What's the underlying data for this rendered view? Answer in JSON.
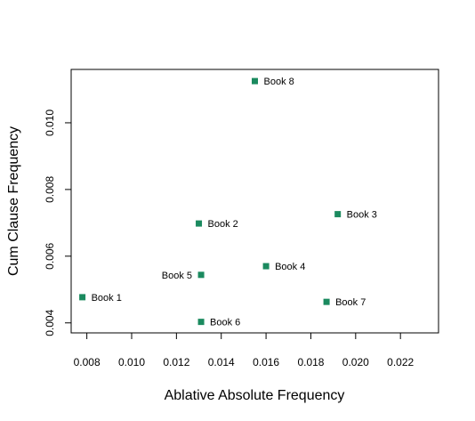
{
  "chart_data": {
    "type": "scatter",
    "title": "",
    "xlabel": "Ablative Absolute Frequency",
    "ylabel": "Cum Clause Frequency",
    "xlim": [
      0.0073,
      0.0237
    ],
    "ylim": [
      0.0037,
      0.0116
    ],
    "x_ticks": [
      "0.008",
      "0.010",
      "0.012",
      "0.014",
      "0.016",
      "0.018",
      "0.020",
      "0.022"
    ],
    "y_ticks": [
      "0.004",
      "0.006",
      "0.008",
      "0.010"
    ],
    "grid": false,
    "marker": "square",
    "point_color": "#1b8a5f",
    "points": [
      {
        "label": "Book 1",
        "x": 0.0078,
        "y": 0.00477,
        "label_side": "right"
      },
      {
        "label": "Book 2",
        "x": 0.013,
        "y": 0.00698,
        "label_side": "right"
      },
      {
        "label": "Book 3",
        "x": 0.0192,
        "y": 0.00726,
        "label_side": "right"
      },
      {
        "label": "Book 4",
        "x": 0.016,
        "y": 0.0057,
        "label_side": "right"
      },
      {
        "label": "Book 5",
        "x": 0.0131,
        "y": 0.00544,
        "label_side": "left"
      },
      {
        "label": "Book 6",
        "x": 0.0131,
        "y": 0.00403,
        "label_side": "right"
      },
      {
        "label": "Book 7",
        "x": 0.0187,
        "y": 0.00463,
        "label_side": "right"
      },
      {
        "label": "Book 8",
        "x": 0.0155,
        "y": 0.01125,
        "label_side": "right"
      }
    ]
  }
}
